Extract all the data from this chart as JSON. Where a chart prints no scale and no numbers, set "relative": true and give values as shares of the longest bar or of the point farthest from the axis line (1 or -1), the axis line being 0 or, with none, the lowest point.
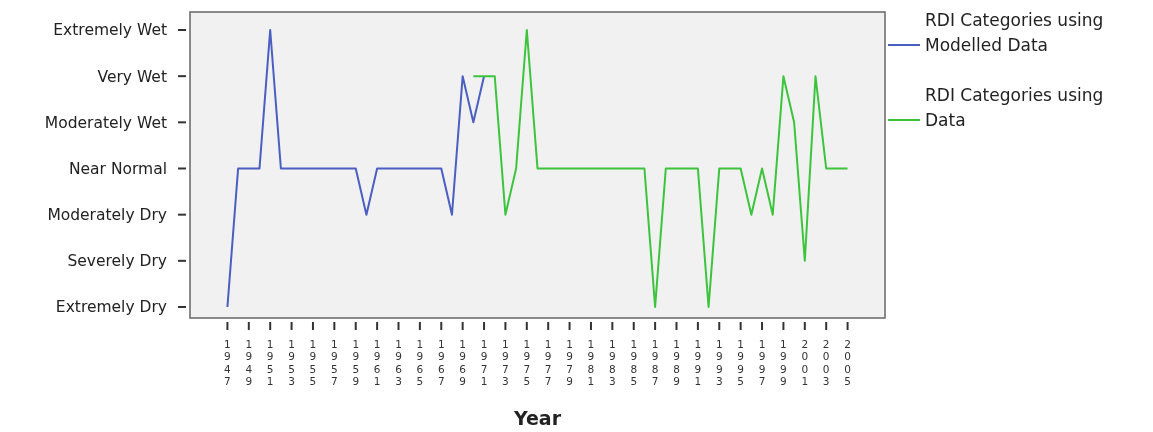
{
  "chart_data": {
    "type": "line",
    "xlabel": "Year",
    "relative": true,
    "xlim": [
      1943.5,
      2008.5
    ],
    "xticks": [
      1947,
      1949,
      1951,
      1953,
      1955,
      1957,
      1959,
      1961,
      1963,
      1965,
      1967,
      1969,
      1971,
      1973,
      1975,
      1977,
      1979,
      1981,
      1983,
      1985,
      1987,
      1989,
      1991,
      1993,
      1995,
      1997,
      1999,
      2001,
      2003,
      2005
    ],
    "annotations": [
      "Extremely Wet",
      "Very Wet",
      "Moderately Wet",
      "Near Normal",
      "Moderately Dry",
      "Severely Dry",
      "Extremely Dry"
    ],
    "legend": "top right",
    "line_style": "solid",
    "series": [
      {
        "name": "RDI Categories using Modelled Data",
        "color": "#4a5fc1",
        "x": [
          1947,
          1948,
          1949,
          1950,
          1951,
          1952,
          1953,
          1954,
          1955,
          1956,
          1957,
          1958,
          1959,
          1960,
          1961,
          1962,
          1963,
          1964,
          1965,
          1966,
          1967,
          1968,
          1969,
          1970,
          1971
        ],
        "values": [
          0,
          0.5,
          0.5,
          0.5,
          1,
          0.5,
          0.5,
          0.5,
          0.5,
          0.5,
          0.5,
          0.5,
          0.5,
          0.333,
          0.5,
          0.5,
          0.5,
          0.5,
          0.5,
          0.5,
          0.5,
          0.333,
          0.833,
          0.667,
          0.833
        ]
      },
      {
        "name": "RDI Categories using Data",
        "color": "#3cc43c",
        "x": [
          1970,
          1971,
          1972,
          1973,
          1974,
          1975,
          1976,
          1977,
          1978,
          1979,
          1980,
          1981,
          1982,
          1983,
          1984,
          1985,
          1986,
          1987,
          1988,
          1989,
          1990,
          1991,
          1992,
          1993,
          1994,
          1995,
          1996,
          1997,
          1998,
          1999,
          2000,
          2001,
          2002,
          2003,
          2004,
          2005
        ],
        "values": [
          0.833,
          0.833,
          0.833,
          0.333,
          0.5,
          1,
          0.5,
          0.5,
          0.5,
          0.5,
          0.5,
          0.5,
          0.5,
          0.5,
          0.5,
          0.5,
          0.5,
          0,
          0.5,
          0.5,
          0.5,
          0.5,
          0,
          0.5,
          0.5,
          0.5,
          0.333,
          0.5,
          0.333,
          0.833,
          0.667,
          0.167,
          0.833,
          0.5,
          0.5,
          0.5
        ]
      }
    ]
  }
}
